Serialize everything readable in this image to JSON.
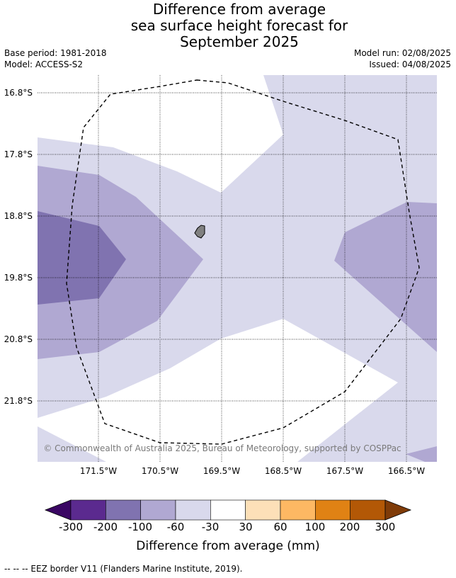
{
  "title_lines": [
    "Difference from average",
    "sea surface height forecast for",
    "September 2025"
  ],
  "base_period": "Base period: 1981-2018",
  "model": "Model: ACCESS-S2",
  "model_run": "Model run: 02/08/2025",
  "issued": "Issued: 04/08/2025",
  "map": {
    "lat_labels": [
      "16.8°S",
      "17.8°S",
      "18.8°S",
      "19.8°S",
      "20.8°S",
      "21.8°S"
    ],
    "lon_labels": [
      "171.5°W",
      "170.5°W",
      "169.5°W",
      "168.5°W",
      "167.5°W",
      "166.5°W"
    ],
    "copyright": "© Commonwealth of Australia 2025, Bureau of Meteorology, supported by COSPPac"
  },
  "colorbar": {
    "label": "Difference from average (mm)",
    "ticks": [
      "-300",
      "-200",
      "-100",
      "-60",
      "-30",
      "30",
      "60",
      "100",
      "200",
      "300"
    ],
    "colors": [
      "#3a0663",
      "#5b2a8f",
      "#8073b0",
      "#b0a8d2",
      "#d9d9ec",
      "#ffffff",
      "#fde0b8",
      "#fdb863",
      "#e08214",
      "#b35806",
      "#7f3b08"
    ]
  },
  "footer": "--  --  -- EEZ border V11 (Flanders Marine Institute, 2019)."
}
